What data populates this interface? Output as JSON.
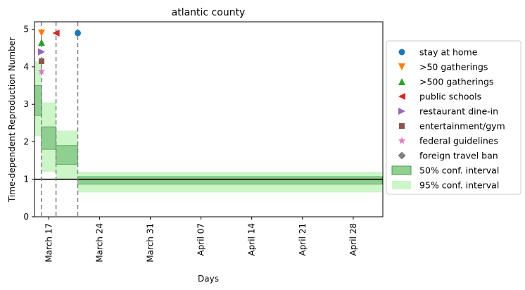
{
  "chart_data": {
    "type": "step-area",
    "title": "atlantic county",
    "xlabel": "Days",
    "ylabel": "Time-dependent Reproduction Number",
    "x_range": [
      "2020-03-15",
      "2020-04-01"
    ],
    "ylim": [
      0,
      5.2
    ],
    "x_ticks": [
      {
        "date": "2020-03-17",
        "label": "March 17"
      },
      {
        "date": "2020-03-24",
        "label": "March 24"
      },
      {
        "date": "2020-03-31",
        "label": "March 31"
      },
      {
        "date": "2020-04-07",
        "label": "April 07"
      },
      {
        "date": "2020-04-14",
        "label": "April 14"
      },
      {
        "date": "2020-04-21",
        "label": "April 21"
      },
      {
        "date": "2020-04-28",
        "label": "April 28"
      }
    ],
    "y_ticks": [
      0,
      1,
      2,
      3,
      4,
      5
    ],
    "reference_line_y": 1,
    "ci50": [
      {
        "start": "2020-03-15",
        "end": "2020-03-16",
        "lo": 2.7,
        "hi": 3.5
      },
      {
        "start": "2020-03-16",
        "end": "2020-03-18",
        "lo": 1.8,
        "hi": 2.4
      },
      {
        "start": "2020-03-18",
        "end": "2020-03-21",
        "lo": 1.4,
        "hi": 1.9
      },
      {
        "start": "2020-03-21",
        "end": "2020-05-02",
        "lo": 0.87,
        "hi": 1.07
      }
    ],
    "ci95": [
      {
        "start": "2020-03-15",
        "end": "2020-03-16",
        "lo": 2.15,
        "hi": 4.15
      },
      {
        "start": "2020-03-16",
        "end": "2020-03-18",
        "lo": 1.2,
        "hi": 3.05
      },
      {
        "start": "2020-03-18",
        "end": "2020-03-21",
        "lo": 1.0,
        "hi": 2.3
      },
      {
        "start": "2020-03-21",
        "end": "2020-05-02",
        "lo": 0.65,
        "hi": 1.2
      }
    ],
    "vlines": [
      "2020-03-16",
      "2020-03-18",
      "2020-03-21"
    ],
    "interventions": [
      {
        "name": "stay at home",
        "date": "2020-03-21",
        "y": 4.9,
        "marker": "circle",
        "color": "#1f77b4"
      },
      {
        "name": ">50 gatherings",
        "date": "2020-03-16",
        "y": 4.9,
        "marker": "triangle-down",
        "color": "#ff7f0e"
      },
      {
        "name": ">500 gatherings",
        "date": "2020-03-16",
        "y": 4.65,
        "marker": "triangle-up",
        "color": "#2ca02c"
      },
      {
        "name": "public schools",
        "date": "2020-03-18",
        "y": 4.9,
        "marker": "triangle-left",
        "color": "#d62728"
      },
      {
        "name": "restaurant dine-in",
        "date": "2020-03-16",
        "y": 4.4,
        "marker": "triangle-right",
        "color": "#9467bd"
      },
      {
        "name": "entertainment/gym",
        "date": "2020-03-16",
        "y": 4.15,
        "marker": "square",
        "color": "#8c564b"
      },
      {
        "name": "federal guidelines",
        "date": "2020-03-16",
        "y": 3.88,
        "marker": "star",
        "color": "#e377c2"
      },
      {
        "name": "foreign travel ban",
        "date": null,
        "y": null,
        "marker": "diamond",
        "color": "#7f7f7f"
      }
    ],
    "legend": {
      "placement": "center-right-outside",
      "ci50_label": "50% conf. interval",
      "ci95_label": "95% conf. interval"
    },
    "colors": {
      "ci50_fill": "#8fcf8f",
      "ci50_edge": "#4f9a4f",
      "ci95_fill": "#ccf5c8",
      "vline": "#808080",
      "refline": "#000000"
    }
  }
}
